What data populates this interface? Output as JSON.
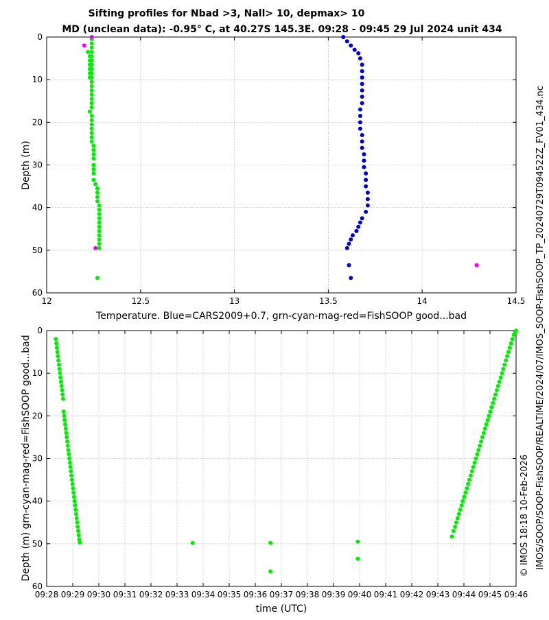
{
  "title_line1": "Sifting profiles for Nbad >3, Nall> 10, depmax> 10",
  "title_line2": "MD (unclean data): -0.95° C, at 40.27S 145.3E. 09:28 - 09:45 29 Jul 2024 unit 434",
  "side_label_1": "IMOS/SOOP/SOOP-FishSOOP/REALTIME/2024/07/IMOS_SOOP-FishSOOP_TP_20240729T094522Z_FV01_434.nc",
  "side_label_2": "© IMOS 18:18 10-Feb-2026",
  "colors": {
    "blue": "#0000cc",
    "green": "#00ee00",
    "magenta": "#ee00ee",
    "grid": "#c8c8c8",
    "axis": "#000000"
  },
  "chart_data": [
    {
      "type": "scatter",
      "xlabel": "Temperature. Blue=CARS2009+0.7, grn-cyan-mag-red=FishSOOP good...bad",
      "ylabel": "Depth (m)",
      "xlim": [
        12,
        14.5
      ],
      "ylim": [
        0,
        60
      ],
      "y_reversed": true,
      "grid": true,
      "xticks": [
        12,
        12.5,
        13,
        13.5,
        14,
        14.5
      ],
      "xtick_labels": [
        "12",
        "12.5",
        "13",
        "13.5",
        "14",
        "14.5"
      ],
      "yticks": [
        0,
        10,
        20,
        30,
        40,
        50,
        60
      ],
      "ytick_labels": [
        "0",
        "10",
        "20",
        "30",
        "40",
        "50",
        "60"
      ],
      "series": [
        {
          "color": "blue",
          "points": [
            [
              13.58,
              0
            ],
            [
              13.6,
              1
            ],
            [
              13.62,
              2
            ],
            [
              13.64,
              3
            ],
            [
              13.66,
              3.8
            ],
            [
              13.67,
              5
            ],
            [
              13.68,
              6.5
            ],
            [
              13.68,
              8
            ],
            [
              13.68,
              9.5
            ],
            [
              13.68,
              11
            ],
            [
              13.68,
              12.5
            ],
            [
              13.68,
              14
            ],
            [
              13.68,
              15.5
            ],
            [
              13.67,
              17
            ],
            [
              13.67,
              18.5
            ],
            [
              13.67,
              20
            ],
            [
              13.67,
              21.5
            ],
            [
              13.68,
              23
            ],
            [
              13.68,
              24.5
            ],
            [
              13.68,
              26
            ],
            [
              13.69,
              27.5
            ],
            [
              13.69,
              29
            ],
            [
              13.69,
              30.5
            ],
            [
              13.7,
              32
            ],
            [
              13.7,
              33.5
            ],
            [
              13.7,
              35
            ],
            [
              13.71,
              36.5
            ],
            [
              13.71,
              38
            ],
            [
              13.71,
              39.5
            ],
            [
              13.7,
              41
            ],
            [
              13.68,
              42.5
            ],
            [
              13.67,
              43.5
            ],
            [
              13.66,
              44.5
            ],
            [
              13.65,
              45.5
            ],
            [
              13.63,
              46.5
            ],
            [
              13.62,
              47.5
            ],
            [
              13.61,
              48.5
            ],
            [
              13.6,
              49.5
            ],
            [
              13.61,
              53.5
            ],
            [
              13.62,
              56.5
            ]
          ]
        },
        {
          "color": "green",
          "points": [
            [
              12.24,
              0.5
            ],
            [
              12.24,
              1.5
            ],
            [
              12.24,
              2.5
            ],
            [
              12.22,
              3.5
            ],
            [
              12.24,
              3.5
            ],
            [
              12.23,
              4.5
            ],
            [
              12.24,
              4.5
            ],
            [
              12.23,
              5.5
            ],
            [
              12.24,
              5.5
            ],
            [
              12.23,
              6.5
            ],
            [
              12.24,
              6.5
            ],
            [
              12.23,
              7.5
            ],
            [
              12.24,
              7.5
            ],
            [
              12.23,
              8.5
            ],
            [
              12.24,
              8.5
            ],
            [
              12.23,
              9.5
            ],
            [
              12.24,
              9.5
            ],
            [
              12.24,
              10.5
            ],
            [
              12.24,
              11.5
            ],
            [
              12.24,
              12.5
            ],
            [
              12.24,
              13.5
            ],
            [
              12.24,
              14.5
            ],
            [
              12.24,
              15.5
            ],
            [
              12.24,
              16.5
            ],
            [
              12.23,
              17.5
            ],
            [
              12.24,
              18.5
            ],
            [
              12.24,
              19.5
            ],
            [
              12.24,
              20.5
            ],
            [
              12.24,
              21.5
            ],
            [
              12.24,
              22.5
            ],
            [
              12.24,
              23.5
            ],
            [
              12.24,
              24.5
            ],
            [
              12.25,
              25.5
            ],
            [
              12.25,
              26.5
            ],
            [
              12.25,
              27.5
            ],
            [
              12.25,
              28.5
            ],
            [
              12.25,
              30
            ],
            [
              12.25,
              31
            ],
            [
              12.25,
              32
            ],
            [
              12.25,
              33.5
            ],
            [
              12.26,
              34.5
            ],
            [
              12.27,
              35.5
            ],
            [
              12.27,
              36.5
            ],
            [
              12.27,
              37.5
            ],
            [
              12.27,
              38.5
            ],
            [
              12.28,
              39.5
            ],
            [
              12.28,
              40.5
            ],
            [
              12.28,
              41.5
            ],
            [
              12.28,
              42.5
            ],
            [
              12.28,
              43.5
            ],
            [
              12.28,
              44.5
            ],
            [
              12.28,
              45.5
            ],
            [
              12.28,
              46.5
            ],
            [
              12.28,
              47.5
            ],
            [
              12.28,
              48.5
            ],
            [
              12.28,
              49.5
            ],
            [
              12.27,
              56.5
            ]
          ]
        },
        {
          "color": "magenta",
          "points": [
            [
              12.24,
              0
            ],
            [
              12.2,
              2
            ],
            [
              12.26,
              49.5
            ],
            [
              14.29,
              53.5
            ]
          ]
        }
      ]
    },
    {
      "type": "scatter",
      "xlabel": "time (UTC)",
      "ylabel": "Depth (m) grn-cyan-mag-red=FishSOOP good...bad",
      "xlim": [
        0,
        18
      ],
      "ylim": [
        0,
        60
      ],
      "y_reversed": true,
      "grid": true,
      "xticks": [
        0,
        1,
        2,
        3,
        4,
        5,
        6,
        7,
        8,
        9,
        10,
        11,
        12,
        13,
        14,
        15,
        16,
        17,
        18
      ],
      "xtick_labels": [
        "09:28",
        "09:29",
        "09:30",
        "09:31",
        "09:32",
        "09:33",
        "09:34",
        "09:35",
        "09:36",
        "09:37",
        "09:38",
        "09:39",
        "09:40",
        "09:41",
        "09:42",
        "09:43",
        "09:44",
        "09:45",
        "09:46"
      ],
      "yticks": [
        0,
        10,
        20,
        30,
        40,
        50,
        60
      ],
      "ytick_labels": [
        "0",
        "10",
        "20",
        "30",
        "40",
        "50",
        "60"
      ],
      "series": [
        {
          "color": "green",
          "points": [
            [
              0.35,
              2
            ],
            [
              0.37,
              3
            ],
            [
              0.39,
              4
            ],
            [
              0.41,
              5
            ],
            [
              0.43,
              6
            ],
            [
              0.45,
              7
            ],
            [
              0.47,
              8
            ],
            [
              0.49,
              9
            ],
            [
              0.51,
              10
            ],
            [
              0.53,
              11
            ],
            [
              0.55,
              12
            ],
            [
              0.57,
              13
            ],
            [
              0.59,
              14
            ],
            [
              0.61,
              15
            ],
            [
              0.63,
              16
            ],
            [
              0.65,
              19
            ],
            [
              0.67,
              20
            ],
            [
              0.69,
              21
            ],
            [
              0.71,
              22
            ],
            [
              0.73,
              23
            ],
            [
              0.75,
              24
            ],
            [
              0.77,
              25
            ],
            [
              0.79,
              26
            ],
            [
              0.81,
              27
            ],
            [
              0.83,
              28
            ],
            [
              0.85,
              29
            ],
            [
              0.87,
              30
            ],
            [
              0.89,
              31
            ],
            [
              0.91,
              32
            ],
            [
              0.93,
              33
            ],
            [
              0.95,
              34
            ],
            [
              0.97,
              35
            ],
            [
              0.99,
              36
            ],
            [
              1.01,
              37
            ],
            [
              1.03,
              38
            ],
            [
              1.05,
              39
            ],
            [
              1.07,
              40
            ],
            [
              1.09,
              41
            ],
            [
              1.11,
              42
            ],
            [
              1.13,
              43
            ],
            [
              1.15,
              44
            ],
            [
              1.17,
              45
            ],
            [
              1.19,
              46
            ],
            [
              1.21,
              47
            ],
            [
              1.23,
              48
            ],
            [
              1.25,
              49
            ],
            [
              1.27,
              49.7
            ],
            [
              5.6,
              49.8
            ],
            [
              8.58,
              49.8
            ],
            [
              8.58,
              56.5
            ],
            [
              11.93,
              49.5
            ],
            [
              11.93,
              53.5
            ],
            [
              15.54,
              48.3
            ],
            [
              15.6,
              47
            ],
            [
              15.66,
              46
            ],
            [
              15.71,
              45
            ],
            [
              15.76,
              44
            ],
            [
              15.81,
              43
            ],
            [
              15.86,
              42
            ],
            [
              15.91,
              41
            ],
            [
              15.96,
              40
            ],
            [
              16.01,
              39
            ],
            [
              16.06,
              38
            ],
            [
              16.11,
              37
            ],
            [
              16.16,
              36
            ],
            [
              16.21,
              35
            ],
            [
              16.26,
              34
            ],
            [
              16.31,
              33
            ],
            [
              16.36,
              32
            ],
            [
              16.41,
              31
            ],
            [
              16.46,
              30
            ],
            [
              16.51,
              29
            ],
            [
              16.56,
              28
            ],
            [
              16.61,
              27
            ],
            [
              16.66,
              26
            ],
            [
              16.71,
              25
            ],
            [
              16.76,
              24
            ],
            [
              16.81,
              23
            ],
            [
              16.86,
              22
            ],
            [
              16.91,
              21
            ],
            [
              16.96,
              20
            ],
            [
              17.01,
              19
            ],
            [
              17.06,
              18
            ],
            [
              17.11,
              17
            ],
            [
              17.16,
              16
            ],
            [
              17.21,
              15
            ],
            [
              17.26,
              14
            ],
            [
              17.31,
              13
            ],
            [
              17.36,
              12
            ],
            [
              17.41,
              11
            ],
            [
              17.46,
              10
            ],
            [
              17.51,
              9
            ],
            [
              17.56,
              8
            ],
            [
              17.61,
              7
            ],
            [
              17.66,
              6
            ],
            [
              17.71,
              5
            ],
            [
              17.76,
              4
            ],
            [
              17.81,
              3
            ],
            [
              17.86,
              2
            ],
            [
              17.91,
              1
            ],
            [
              17.96,
              0.5
            ],
            [
              18.0,
              0
            ]
          ]
        }
      ]
    }
  ]
}
